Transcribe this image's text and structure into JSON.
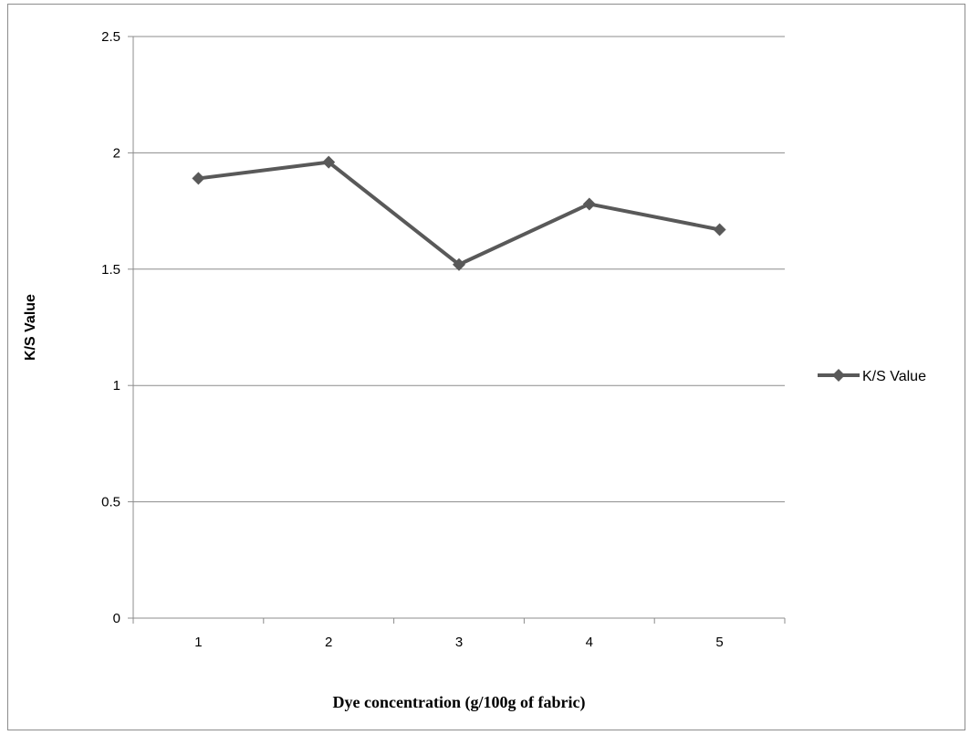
{
  "chart_data": {
    "type": "line",
    "title": "",
    "xlabel": "Dye concentration (g/100g of fabric)",
    "ylabel": "K/S Value",
    "categories": [
      "1",
      "2",
      "3",
      "4",
      "5"
    ],
    "series": [
      {
        "name": "K/S Value",
        "values": [
          1.89,
          1.96,
          1.52,
          1.78,
          1.67
        ],
        "color": "#595959",
        "marker": "diamond"
      }
    ],
    "ylim": [
      0,
      2.5
    ],
    "yticks": [
      0,
      0.5,
      1,
      1.5,
      2,
      2.5
    ],
    "ytick_labels": [
      "0",
      "0.5",
      "1",
      "1.5",
      "2",
      "2.5"
    ],
    "grid": "horizontal",
    "legend": "right",
    "colors": {
      "gridline": "#8c8c8c",
      "axis": "#8c8c8c"
    }
  }
}
